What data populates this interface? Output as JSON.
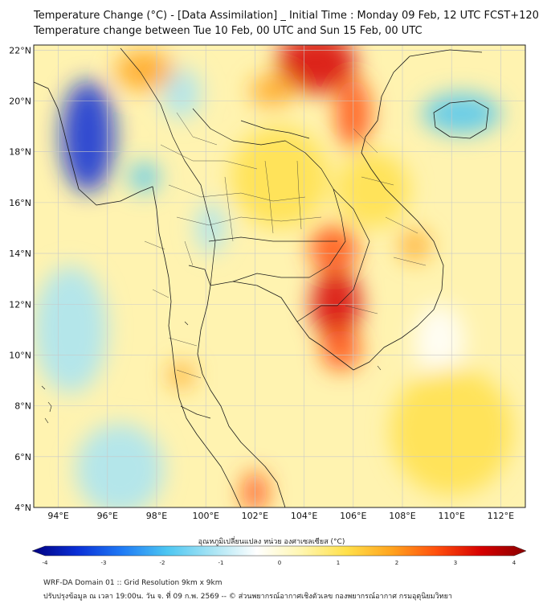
{
  "header": {
    "title_line1": "Temperature Change (°C) - [Data Assimilation] _ Initial Time : Monday 09 Feb, 12 UTC FCST+120",
    "title_line2": "Temperature change between Tue 10 Feb, 00 UTC and Sun 15 Feb, 00 UTC"
  },
  "map": {
    "lon_labels": [
      "94°E",
      "96°E",
      "98°E",
      "100°E",
      "102°E",
      "104°E",
      "106°E",
      "108°E",
      "110°E",
      "112°E"
    ],
    "lon_values": [
      94,
      96,
      98,
      100,
      102,
      104,
      106,
      108,
      110,
      112
    ],
    "lat_labels": [
      "22°N",
      "20°N",
      "18°N",
      "16°N",
      "14°N",
      "12°N",
      "10°N",
      "8°N",
      "6°N",
      "4°N"
    ],
    "lat_values": [
      22,
      20,
      18,
      16,
      14,
      12,
      10,
      8,
      6,
      4
    ],
    "lon_range": [
      93,
      113
    ],
    "lat_range": [
      4,
      22.2
    ],
    "field_regions": [
      {
        "lon": 95.2,
        "lat": 18.6,
        "value": -3.0,
        "spread_lon": 1.1,
        "spread_lat": 2.2,
        "label": "cooling over western Myanmar"
      },
      {
        "lon": 97.5,
        "lat": 17.0,
        "value": -1.8,
        "spread_lon": 0.6,
        "spread_lat": 0.6,
        "label": "cooling near Yangon"
      },
      {
        "lon": 110.4,
        "lat": 19.5,
        "value": -1.8,
        "spread_lon": 1.6,
        "spread_lat": 0.8,
        "label": "cooling over Hainan"
      },
      {
        "lon": 99.0,
        "lat": 20.3,
        "value": -1.2,
        "spread_lon": 0.8,
        "spread_lat": 1.0,
        "label": "cooling northern Myanmar"
      },
      {
        "lon": 100.2,
        "lat": 15.0,
        "value": -0.8,
        "spread_lon": 0.6,
        "spread_lat": 1.0,
        "label": "slight cooling central Thailand"
      },
      {
        "lon": 94.5,
        "lat": 11.0,
        "value": -0.9,
        "spread_lon": 1.5,
        "spread_lat": 2.5,
        "label": "cooling Andaman Sea"
      },
      {
        "lon": 96.5,
        "lat": 5.5,
        "value": -0.9,
        "spread_lon": 1.8,
        "spread_lat": 1.8,
        "label": "cooling near Sumatra"
      },
      {
        "lon": 109.5,
        "lat": 10.5,
        "value": -0.6,
        "spread_lon": 1.0,
        "spread_lat": 1.5,
        "label": "cooling South China Sea"
      },
      {
        "lon": 105.3,
        "lat": 12.0,
        "value": 3.2,
        "spread_lon": 1.0,
        "spread_lat": 1.4,
        "label": "warming Cambodia"
      },
      {
        "lon": 105.5,
        "lat": 10.2,
        "value": 2.6,
        "spread_lon": 0.8,
        "spread_lat": 0.8,
        "label": "warming Mekong delta"
      },
      {
        "lon": 105.2,
        "lat": 14.2,
        "value": 2.4,
        "spread_lon": 1.0,
        "spread_lat": 0.9,
        "label": "warming southern Laos"
      },
      {
        "lon": 104.5,
        "lat": 21.5,
        "value": 3.0,
        "spread_lon": 1.6,
        "spread_lat": 1.2,
        "label": "warming northern Vietnam"
      },
      {
        "lon": 106.0,
        "lat": 19.5,
        "value": 2.6,
        "spread_lon": 0.7,
        "spread_lat": 1.4,
        "label": "warming Gulf of Tonkin coast"
      },
      {
        "lon": 102.7,
        "lat": 20.4,
        "value": 2.0,
        "spread_lon": 0.9,
        "spread_lat": 0.6,
        "label": "warming northern Laos"
      },
      {
        "lon": 102.0,
        "lat": 4.6,
        "value": 2.4,
        "spread_lon": 0.5,
        "spread_lat": 0.8,
        "label": "warming Malaysia"
      },
      {
        "lon": 99.0,
        "lat": 9.2,
        "value": 2.0,
        "spread_lon": 0.5,
        "spread_lat": 0.5,
        "label": "warming southern Thailand"
      },
      {
        "lon": 97.5,
        "lat": 21.2,
        "value": 1.5,
        "spread_lon": 1.2,
        "spread_lat": 0.8,
        "label": "warming Myanmar north"
      },
      {
        "lon": 108.5,
        "lat": 14.3,
        "value": 1.8,
        "spread_lon": 0.6,
        "spread_lat": 0.6,
        "label": "warming central Vietnam"
      },
      {
        "lon": 103.0,
        "lat": 17.0,
        "value": 1.3,
        "spread_lon": 2.0,
        "spread_lat": 2.0,
        "label": "warming northeast Thailand"
      },
      {
        "lon": 106.8,
        "lat": 16.5,
        "value": 1.3,
        "spread_lon": 1.5,
        "spread_lat": 1.5,
        "label": "warming Vietnam"
      },
      {
        "lon": 110.0,
        "lat": 7.0,
        "value": 0.8,
        "spread_lon": 2.5,
        "spread_lat": 2.5,
        "label": "warming southern sea"
      }
    ]
  },
  "colorbar": {
    "title": "อุณหภูมิเปลี่ยนแปลง หน่วย องศาเซลเซียส (°C)",
    "ticks": [
      "-4",
      "-3",
      "-2",
      "-1",
      "0",
      "1",
      "2",
      "3",
      "4"
    ],
    "tick_values": [
      -4,
      -3,
      -2,
      -1,
      0,
      1,
      2,
      3,
      4
    ],
    "range": [
      -4,
      4
    ],
    "colors": [
      "#000080",
      "#0a2fd6",
      "#1f7af5",
      "#4cc6f2",
      "#a7e4f4",
      "#ffffff",
      "#fff6b0",
      "#ffe04a",
      "#ffa41e",
      "#ff4f0d",
      "#d60000",
      "#8a0000"
    ]
  },
  "footer": {
    "line1": "WRF-DA Domain 01 :: Grid Resolution 9km x 9km",
    "line2": "ปรับปรุงข้อมูล ณ เวลา 19:00น. วัน จ. ที่ 09 ก.พ. 2569 -- © ส่วนพยากรณ์อากาศเชิงตัวเลข กองพยากรณ์อากาศ กรมอุตุนิยมวิทยา"
  }
}
